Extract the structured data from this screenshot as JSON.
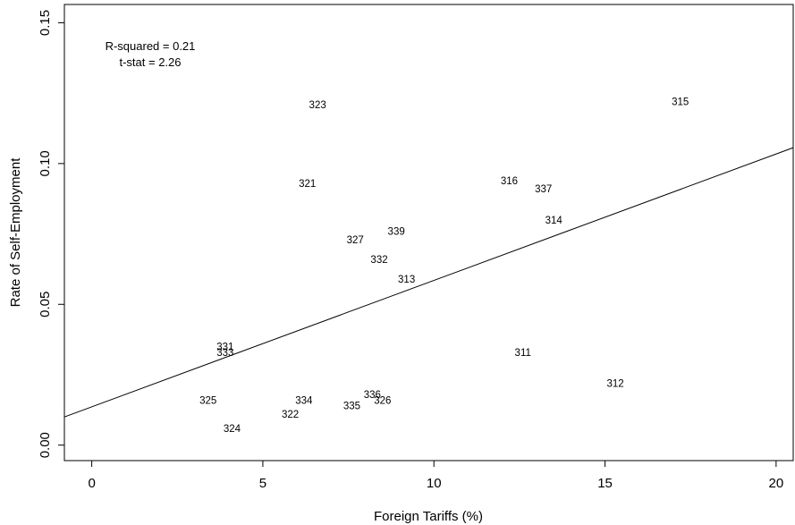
{
  "chart_data": {
    "type": "scatter",
    "title": "",
    "xlabel": "Foreign Tariffs (%)",
    "ylabel": "Rate of Self-Employment",
    "xlim": [
      -0.8,
      20.5
    ],
    "ylim": [
      -0.0055,
      0.1565
    ],
    "x_ticks": [
      0,
      5,
      10,
      15,
      20
    ],
    "x_tick_labels": [
      "0",
      "5",
      "10",
      "15",
      "20"
    ],
    "y_ticks": [
      0.0,
      0.05,
      0.1,
      0.15
    ],
    "y_tick_labels": [
      "0.00",
      "0.05",
      "0.10",
      "0.15"
    ],
    "grid": false,
    "annotations": {
      "r_squared": "R-squared = 0.21",
      "t_stat": "t-stat = 2.26"
    },
    "fit_line": {
      "intercept": 0.0136,
      "slope": 0.00449
    },
    "points": [
      {
        "label": "315",
        "x": 17.2,
        "y": 0.122
      },
      {
        "label": "323",
        "x": 6.6,
        "y": 0.121
      },
      {
        "label": "321",
        "x": 6.3,
        "y": 0.093
      },
      {
        "label": "316",
        "x": 12.2,
        "y": 0.094
      },
      {
        "label": "337",
        "x": 13.2,
        "y": 0.091
      },
      {
        "label": "314",
        "x": 13.5,
        "y": 0.08
      },
      {
        "label": "339",
        "x": 8.9,
        "y": 0.076
      },
      {
        "label": "327",
        "x": 7.7,
        "y": 0.073
      },
      {
        "label": "332",
        "x": 8.4,
        "y": 0.066
      },
      {
        "label": "313",
        "x": 9.2,
        "y": 0.059
      },
      {
        "label": "331",
        "x": 3.9,
        "y": 0.035
      },
      {
        "label": "333",
        "x": 3.9,
        "y": 0.033
      },
      {
        "label": "311",
        "x": 12.6,
        "y": 0.033
      },
      {
        "label": "312",
        "x": 15.3,
        "y": 0.022
      },
      {
        "label": "325",
        "x": 3.4,
        "y": 0.016
      },
      {
        "label": "334",
        "x": 6.2,
        "y": 0.016
      },
      {
        "label": "336",
        "x": 8.2,
        "y": 0.018
      },
      {
        "label": "326",
        "x": 8.5,
        "y": 0.016
      },
      {
        "label": "335",
        "x": 7.6,
        "y": 0.014
      },
      {
        "label": "322",
        "x": 5.8,
        "y": 0.011
      },
      {
        "label": "324",
        "x": 4.1,
        "y": 0.006
      }
    ]
  }
}
